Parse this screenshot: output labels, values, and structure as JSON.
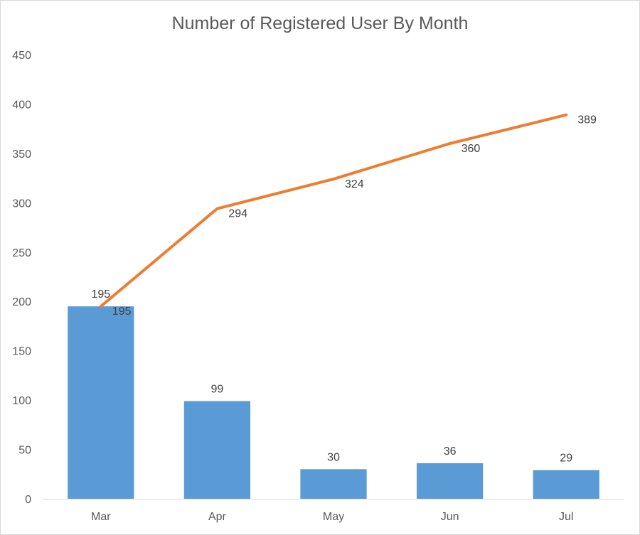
{
  "chart_data": {
    "type": "bar",
    "title": "Number of Registered User By Month",
    "categories": [
      "Mar",
      "Apr",
      "May",
      "Jun",
      "Jul"
    ],
    "series": [
      {
        "type": "bar",
        "values": [
          195,
          99,
          30,
          36,
          29
        ],
        "color": "#5b9bd5"
      },
      {
        "type": "line",
        "values": [
          195,
          294,
          324,
          360,
          389
        ],
        "color": "#ed7d31"
      }
    ],
    "xlabel": "",
    "ylabel": "",
    "ylim": [
      0,
      450
    ],
    "yticks": [
      0,
      50,
      100,
      150,
      200,
      250,
      300,
      350,
      400,
      450
    ],
    "grid": false,
    "legend": "none"
  }
}
